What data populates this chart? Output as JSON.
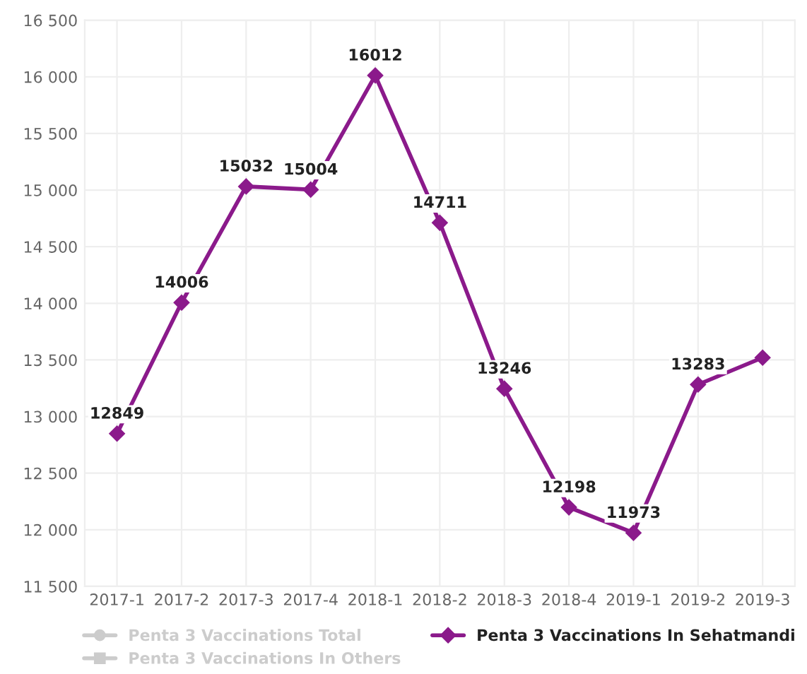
{
  "chart_data": {
    "type": "line",
    "categories": [
      "2017-1",
      "2017-2",
      "2017-3",
      "2017-4",
      "2018-1",
      "2018-2",
      "2018-3",
      "2018-4",
      "2019-1",
      "2019-2",
      "2019-3"
    ],
    "series": [
      {
        "name": "Penta 3 Vaccinations Total",
        "color": "#cccccc",
        "marker": "circle",
        "values": [
          null,
          null,
          null,
          null,
          null,
          null,
          null,
          null,
          null,
          null,
          null
        ]
      },
      {
        "name": "Penta 3 Vaccinations In Others",
        "color": "#cccccc",
        "marker": "square",
        "values": [
          null,
          null,
          null,
          null,
          null,
          null,
          null,
          null,
          null,
          null,
          null
        ]
      },
      {
        "name": "Penta 3 Vaccinations In Sehatmandi",
        "color": "#8b1a8b",
        "marker": "diamond",
        "values": [
          12849,
          14006,
          15032,
          15004,
          16012,
          14711,
          13246,
          12198,
          11973,
          13283,
          13520
        ],
        "value_labels": [
          "12849",
          "14006",
          "15032",
          "15004",
          "16012",
          "14711",
          "13246",
          "12198",
          "11973",
          "13283",
          null
        ]
      }
    ],
    "ylim": [
      11500,
      16500
    ],
    "yticks": [
      {
        "value": 11500,
        "label": "11 500"
      },
      {
        "value": 12000,
        "label": "12 000"
      },
      {
        "value": 12500,
        "label": "12 500"
      },
      {
        "value": 13000,
        "label": "13 000"
      },
      {
        "value": 13500,
        "label": "13 500"
      },
      {
        "value": 14000,
        "label": "14 000"
      },
      {
        "value": 14500,
        "label": "14 500"
      },
      {
        "value": 15000,
        "label": "15 000"
      },
      {
        "value": 15500,
        "label": "15 500"
      },
      {
        "value": 16000,
        "label": "16 000"
      },
      {
        "value": 16500,
        "label": "16 500"
      }
    ],
    "grid": true,
    "legend": "bottom"
  }
}
